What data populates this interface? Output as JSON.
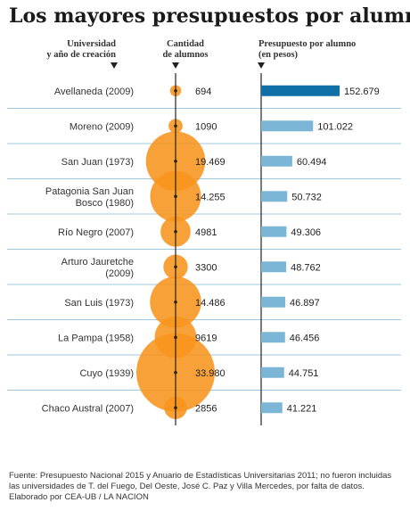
{
  "chart_data": {
    "type": "bar",
    "title": "Los mayores presupuestos por alumno",
    "columns": {
      "university": [
        "Universidad",
        "y año de creación"
      ],
      "students": [
        "Cantidad",
        "de alumnos"
      ],
      "budget": [
        "Presupuesto por alumno",
        "(en pesos)"
      ]
    },
    "rows": [
      {
        "name": [
          "Avellaneda (2009)"
        ],
        "students": 694,
        "students_label": "694",
        "budget": 152679,
        "budget_label": "152.679"
      },
      {
        "name": [
          "Moreno (2009)"
        ],
        "students": 1090,
        "students_label": "1090",
        "budget": 101022,
        "budget_label": "101.022"
      },
      {
        "name": [
          "San Juan (1973)"
        ],
        "students": 19469,
        "students_label": "19.469",
        "budget": 60494,
        "budget_label": "60.494"
      },
      {
        "name": [
          "Patagonia San Juan",
          "Bosco (1980)"
        ],
        "students": 14255,
        "students_label": "14.255",
        "budget": 50732,
        "budget_label": "50.732"
      },
      {
        "name": [
          "Río Negro (2007)"
        ],
        "students": 4981,
        "students_label": "4981",
        "budget": 49306,
        "budget_label": "49.306"
      },
      {
        "name": [
          "Arturo Jauretche",
          "(2009)"
        ],
        "students": 3300,
        "students_label": "3300",
        "budget": 48762,
        "budget_label": "48.762"
      },
      {
        "name": [
          "San Luis (1973)"
        ],
        "students": 14486,
        "students_label": "14.486",
        "budget": 46897,
        "budget_label": "46.897"
      },
      {
        "name": [
          "La Pampa (1958)"
        ],
        "students": 9619,
        "students_label": "9619",
        "budget": 46456,
        "budget_label": "46.456"
      },
      {
        "name": [
          "Cuyo (1939)"
        ],
        "students": 33980,
        "students_label": "33.980",
        "budget": 44751,
        "budget_label": "44.751"
      },
      {
        "name": [
          "Chaco Austral (2007)"
        ],
        "students": 2856,
        "students_label": "2856",
        "budget": 41221,
        "budget_label": "41.221"
      }
    ],
    "bubble_encoding": "area proportional to students",
    "bar_range": [
      0,
      152679
    ],
    "colors": {
      "bubble": "#f7941d",
      "bubble_overlap": "#ef5b25",
      "bar_top": "#0f6fa6",
      "bar": "#7cb6d6",
      "separator": "#9fc8df",
      "axis": "#222222"
    }
  },
  "footnote": "Fuente: Presupuesto Nacional 2015 y Anuario de Estadísticas Universitarias 2011; no fueron incluidas las universidades de T. del Fuego, Del Oeste, José C. Paz y Villa Mercedes, por falta de datos. Elaborado por CEA-UB / LA NACION"
}
